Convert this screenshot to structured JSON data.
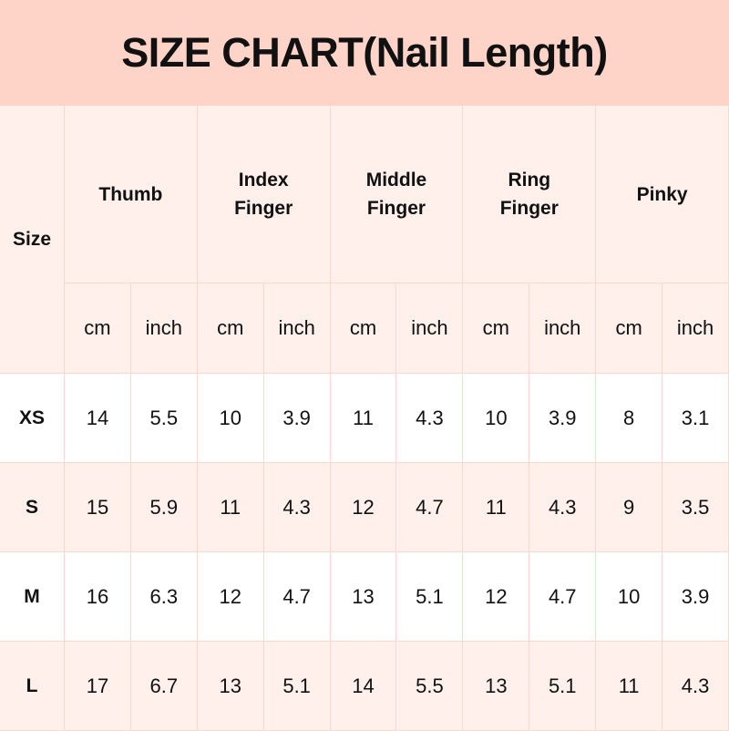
{
  "title": "SIZE CHART(Nail Length)",
  "table": {
    "size_header": "Size",
    "fingers": [
      "Thumb",
      "Index\nFinger",
      "Middle\nFinger",
      "Ring\nFinger",
      "Pinky"
    ],
    "units": [
      "cm",
      "inch"
    ],
    "rows": [
      {
        "size": "XS",
        "values": [
          "14",
          "5.5",
          "10",
          "3.9",
          "11",
          "4.3",
          "10",
          "3.9",
          "8",
          "3.1"
        ]
      },
      {
        "size": "S",
        "values": [
          "15",
          "5.9",
          "11",
          "4.3",
          "12",
          "4.7",
          "11",
          "4.3",
          "9",
          "3.5"
        ]
      },
      {
        "size": "M",
        "values": [
          "16",
          "6.3",
          "12",
          "4.7",
          "13",
          "5.1",
          "12",
          "4.7",
          "10",
          "3.9"
        ]
      },
      {
        "size": "L",
        "values": [
          "17",
          "6.7",
          "13",
          "5.1",
          "14",
          "5.5",
          "13",
          "5.1",
          "11",
          "4.3"
        ]
      }
    ]
  },
  "colors": {
    "title_bg": "#fed4c8",
    "header_bg": "#fff0eb",
    "border": "#fbd8cc"
  }
}
